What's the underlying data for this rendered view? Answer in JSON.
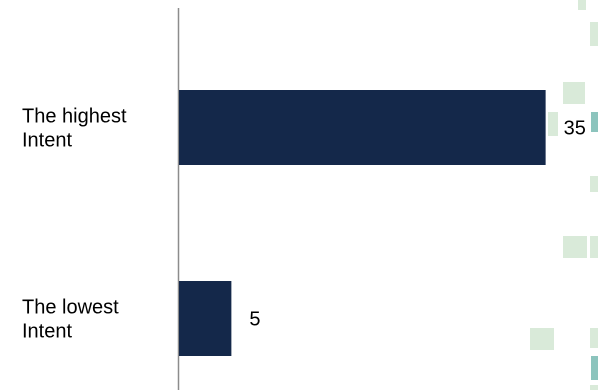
{
  "colors": {
    "bar": "#14284a",
    "axis": "#8c8c8c",
    "decor_green": "#d9ead9",
    "decor_teal": "#8cc4bd"
  },
  "chart_data": {
    "type": "bar",
    "orientation": "horizontal",
    "categories": [
      [
        "The highest",
        "Intent"
      ],
      [
        "The lowest",
        "Intent"
      ]
    ],
    "values": [
      35,
      5
    ],
    "xlim": [
      0,
      40
    ],
    "grid": false,
    "legend": "none"
  }
}
